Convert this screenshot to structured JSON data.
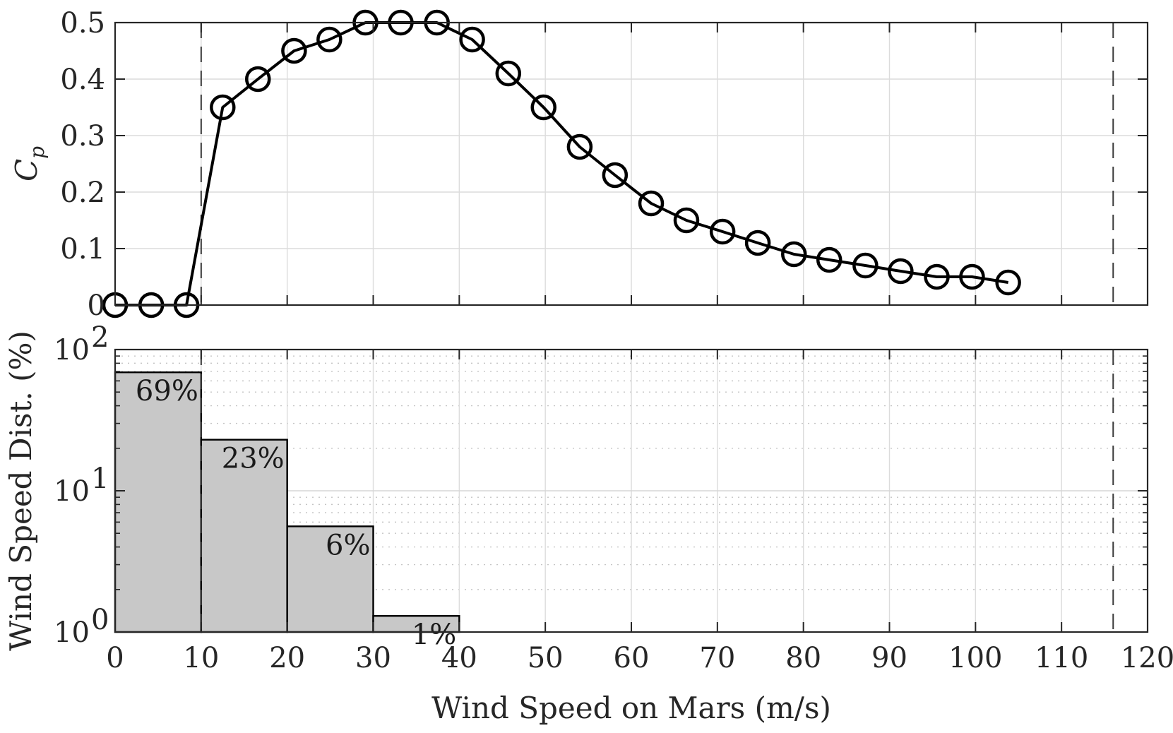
{
  "chart_data": [
    {
      "type": "line",
      "ylabel": "C",
      "ylabel_sub": "p",
      "xlim": [
        0,
        120
      ],
      "ylim": [
        0,
        0.5
      ],
      "yticks": [
        "0",
        "0.1",
        "0.2",
        "0.3",
        "0.4",
        "0.5"
      ],
      "grid": true,
      "marker": "circle",
      "x": [
        0,
        4.2,
        8.3,
        12.5,
        16.6,
        20.8,
        24.9,
        29.1,
        33.2,
        37.4,
        41.5,
        45.7,
        49.8,
        54.0,
        58.1,
        62.3,
        66.4,
        70.6,
        74.7,
        78.9,
        83.0,
        87.2,
        91.3,
        95.5,
        99.6,
        103.8
      ],
      "values": [
        0,
        0,
        0,
        0.35,
        0.4,
        0.45,
        0.47,
        0.5,
        0.5,
        0.5,
        0.47,
        0.41,
        0.35,
        0.28,
        0.23,
        0.18,
        0.15,
        0.13,
        0.11,
        0.09,
        0.08,
        0.07,
        0.06,
        0.05,
        0.05,
        0.04
      ],
      "vlines_dashed": [
        10,
        116
      ]
    },
    {
      "type": "bar",
      "xlabel": "Wind Speed on Mars (m/s)",
      "ylabel": "Wind Speed Dist. (%)",
      "yscale": "log",
      "ylim": [
        1,
        100
      ],
      "xlim": [
        0,
        120
      ],
      "xticks": [
        "0",
        "10",
        "20",
        "30",
        "40",
        "50",
        "60",
        "70",
        "80",
        "90",
        "100",
        "110",
        "120"
      ],
      "yticks": [
        {
          "base": "10",
          "exp": "0"
        },
        {
          "base": "10",
          "exp": "1"
        },
        {
          "base": "10",
          "exp": "2"
        }
      ],
      "bins": [
        [
          0,
          10
        ],
        [
          10,
          20
        ],
        [
          20,
          30
        ],
        [
          30,
          40
        ]
      ],
      "values": [
        69,
        23,
        5.6,
        1.3
      ],
      "bar_labels": [
        "69%",
        "23%",
        "6%",
        "1%"
      ],
      "bar_color": "#c8c8c8",
      "grid": true,
      "vlines_dashed": [
        10,
        116
      ]
    }
  ]
}
